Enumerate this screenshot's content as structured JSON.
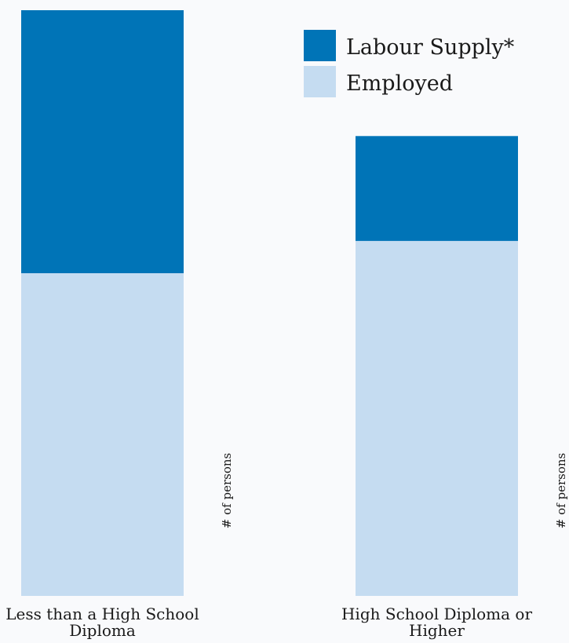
{
  "chart_data": {
    "type": "bar",
    "stacked": true,
    "categories": [
      "Less than a High School Diploma",
      "High School Diploma or Higher"
    ],
    "category_lines": [
      [
        "Less than a High School",
        "Diploma"
      ],
      [
        "High School Diploma or",
        "Higher"
      ]
    ],
    "series": [
      {
        "name": "Employed",
        "values": [
          100,
          110
        ],
        "color": "#c5dcf1"
      },
      {
        "name": "Labour Supply*",
        "values": [
          81.5,
          32.5
        ],
        "color": "#0074b7"
      }
    ],
    "ylabel": "# of persons",
    "ylim": [
      0,
      181.5
    ],
    "grid": false,
    "legend_position": "top-right",
    "legend_order": [
      1,
      0
    ]
  }
}
